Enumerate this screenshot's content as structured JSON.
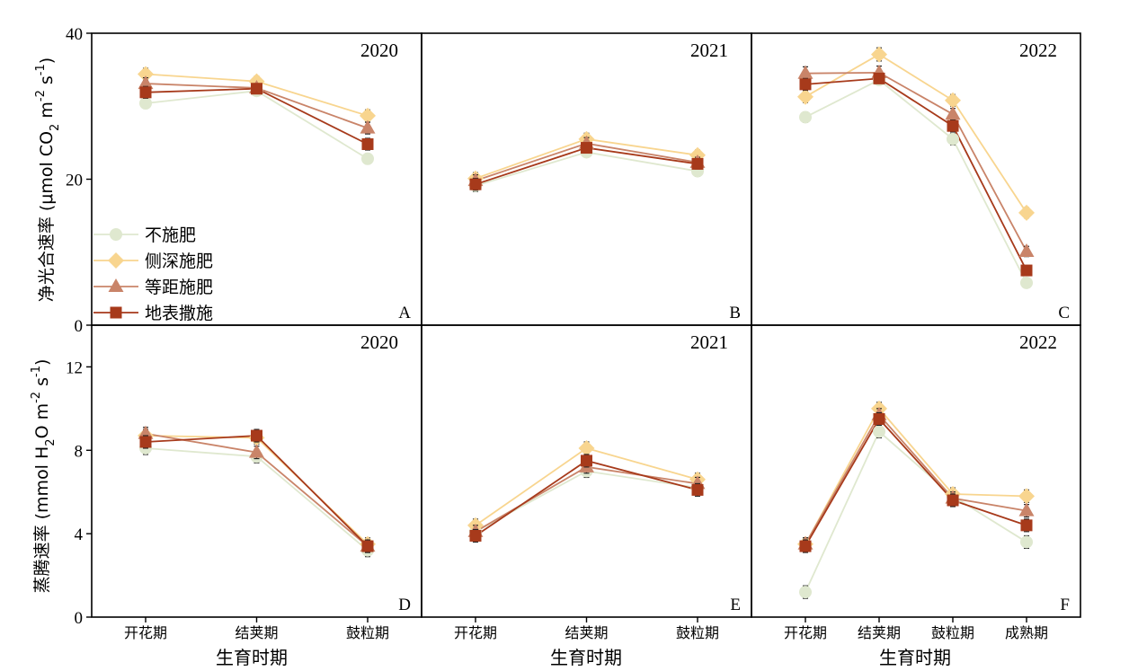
{
  "colors": {
    "不施肥": "#dfe8cf",
    "侧深施肥": "#f8d58f",
    "等距施肥": "#c98469",
    "地表撒施": "#a73a1b"
  },
  "legend": [
    "不施肥",
    "侧深施肥",
    "等距施肥",
    "地表撒施"
  ],
  "markers": {
    "不施肥": "circle",
    "侧深施肥": "diamond",
    "等距施肥": "triangle",
    "地表撒施": "square"
  },
  "ylabel_top": {
    "main": "净光合速率 (μmol CO",
    "sub1": "2",
    "mid": " m",
    "sup1": "-2",
    "mid2": " s",
    "sup2": "-1",
    "end": ")"
  },
  "ylabel_bottom": {
    "main": "蒸腾速率 (mmol H",
    "sub1": "2",
    "mid": "O m",
    "sup1": "-2",
    "mid2": " s",
    "sup2": "-1",
    "end": ")"
  },
  "xlabel": "生育时期",
  "chart_data": [
    {
      "type": "line",
      "panel": "A",
      "year": "2020",
      "ylim": [
        0,
        40
      ],
      "yticks": [
        0,
        20,
        40
      ],
      "categories": [
        "开花期",
        "结荚期",
        "鼓粒期"
      ],
      "series": [
        {
          "name": "不施肥",
          "values": [
            30.4,
            32.1,
            22.8
          ],
          "err": [
            0.7,
            0.6,
            0.7
          ]
        },
        {
          "name": "侧深施肥",
          "values": [
            34.4,
            33.4,
            28.7
          ],
          "err": [
            0.8,
            0.7,
            0.8
          ]
        },
        {
          "name": "等距施肥",
          "values": [
            33.1,
            32.5,
            27.0
          ],
          "err": [
            0.8,
            0.6,
            0.8
          ]
        },
        {
          "name": "地表撒施",
          "values": [
            31.9,
            32.4,
            24.8
          ],
          "err": [
            0.8,
            0.6,
            0.8
          ]
        }
      ]
    },
    {
      "type": "line",
      "panel": "B",
      "year": "2021",
      "ylim": [
        0,
        40
      ],
      "categories": [
        "开花期",
        "结荚期",
        "鼓粒期"
      ],
      "series": [
        {
          "name": "不施肥",
          "values": [
            19.1,
            23.7,
            21.1
          ],
          "err": [
            0.8,
            0.6,
            0.7
          ]
        },
        {
          "name": "侧深施肥",
          "values": [
            20.1,
            25.5,
            23.3
          ],
          "err": [
            0.8,
            0.8,
            0.7
          ]
        },
        {
          "name": "等距施肥",
          "values": [
            19.8,
            24.9,
            22.3
          ],
          "err": [
            0.8,
            0.8,
            0.7
          ]
        },
        {
          "name": "地表撒施",
          "values": [
            19.3,
            24.3,
            22.1
          ],
          "err": [
            0.8,
            0.6,
            0.7
          ]
        }
      ]
    },
    {
      "type": "line",
      "panel": "C",
      "year": "2022",
      "ylim": [
        0,
        40
      ],
      "categories": [
        "开花期",
        "结荚期",
        "鼓粒期",
        "成熟期"
      ],
      "series": [
        {
          "name": "不施肥",
          "values": [
            28.5,
            33.6,
            25.5,
            5.8
          ],
          "err": [
            0.7,
            0.6,
            0.8,
            0.6
          ]
        },
        {
          "name": "侧深施肥",
          "values": [
            31.3,
            37.1,
            30.8,
            15.4
          ],
          "err": [
            0.8,
            0.9,
            0.8,
            0.7
          ]
        },
        {
          "name": "等距施肥",
          "values": [
            34.5,
            34.6,
            28.9,
            10.1
          ],
          "err": [
            0.9,
            0.9,
            0.8,
            0.7
          ]
        },
        {
          "name": "地表撒施",
          "values": [
            33.0,
            33.8,
            27.3,
            7.5
          ],
          "err": [
            0.8,
            0.6,
            0.8,
            0.6
          ]
        }
      ]
    },
    {
      "type": "line",
      "panel": "D",
      "year": "2020",
      "ylim": [
        0,
        14
      ],
      "yticks": [
        0,
        4,
        8,
        12
      ],
      "categories": [
        "开花期",
        "结荚期",
        "鼓粒期"
      ],
      "series": [
        {
          "name": "不施肥",
          "values": [
            8.1,
            7.7,
            3.2
          ],
          "err": [
            0.3,
            0.3,
            0.3
          ]
        },
        {
          "name": "侧深施肥",
          "values": [
            8.7,
            8.6,
            3.5
          ],
          "err": [
            0.3,
            0.3,
            0.3
          ]
        },
        {
          "name": "等距施肥",
          "values": [
            8.8,
            7.9,
            3.4
          ],
          "err": [
            0.3,
            0.3,
            0.3
          ]
        },
        {
          "name": "地表撒施",
          "values": [
            8.4,
            8.7,
            3.4
          ],
          "err": [
            0.3,
            0.3,
            0.3
          ]
        }
      ]
    },
    {
      "type": "line",
      "panel": "E",
      "year": "2021",
      "ylim": [
        0,
        14
      ],
      "categories": [
        "开花期",
        "结荚期",
        "鼓粒期"
      ],
      "series": [
        {
          "name": "不施肥",
          "values": [
            4.1,
            7.0,
            6.2
          ],
          "err": [
            0.3,
            0.3,
            0.3
          ]
        },
        {
          "name": "侧深施肥",
          "values": [
            4.4,
            8.1,
            6.6
          ],
          "err": [
            0.3,
            0.3,
            0.3
          ]
        },
        {
          "name": "等距施肥",
          "values": [
            4.1,
            7.2,
            6.4
          ],
          "err": [
            0.3,
            0.3,
            0.3
          ]
        },
        {
          "name": "地表撒施",
          "values": [
            3.9,
            7.5,
            6.1
          ],
          "err": [
            0.3,
            0.3,
            0.3
          ]
        }
      ]
    },
    {
      "type": "line",
      "panel": "F",
      "year": "2022",
      "ylim": [
        0,
        14
      ],
      "categories": [
        "开花期",
        "结荚期",
        "鼓粒期",
        "成熟期"
      ],
      "series": [
        {
          "name": "不施肥",
          "values": [
            1.2,
            8.9,
            5.8,
            3.6
          ],
          "err": [
            0.3,
            0.3,
            0.3,
            0.3
          ]
        },
        {
          "name": "侧深施肥",
          "values": [
            3.5,
            10.0,
            5.9,
            5.8
          ],
          "err": [
            0.3,
            0.3,
            0.3,
            0.3
          ]
        },
        {
          "name": "等距施肥",
          "values": [
            3.5,
            9.7,
            5.7,
            5.1
          ],
          "err": [
            0.3,
            0.3,
            0.3,
            0.3
          ]
        },
        {
          "name": "地表撒施",
          "values": [
            3.4,
            9.5,
            5.6,
            4.4
          ],
          "err": [
            0.3,
            0.3,
            0.3,
            0.3
          ]
        }
      ]
    }
  ]
}
